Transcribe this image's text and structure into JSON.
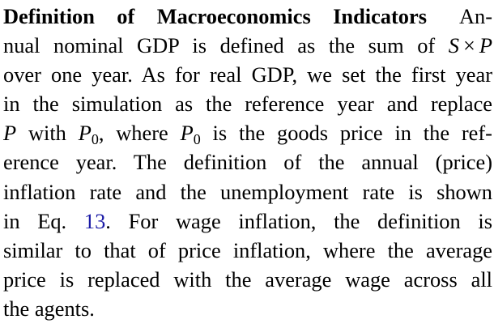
{
  "paragraph": {
    "heading": "Definition of Macroeconomics Indicators",
    "l1_end": "An-",
    "l2_a": "nual nominal GDP is defined as the sum of",
    "var_S": "S",
    "times": "×",
    "var_P": "P",
    "l3": "over one year. As for real GDP, we set the first year",
    "l4": "in the simulation as the reference year and replace",
    "l5_a": "with",
    "l5_var_P0": "P",
    "l5_sub0": "0",
    "l5_b": ", where",
    "l5_var_P0b": "P",
    "l5_sub0b": "0",
    "l5_c": "is the goods price in the ref-",
    "l6": "erence year. The definition of the annual (price)",
    "l7": "inflation rate and the unemployment rate is shown",
    "l8_a": "in Eq.",
    "eq_ref": "13",
    "l8_b": ". For wage inflation, the definition is",
    "l9": "similar to that of price inflation, where the average",
    "l10": "price is replaced with the average wage across all",
    "l11": "the agents."
  }
}
